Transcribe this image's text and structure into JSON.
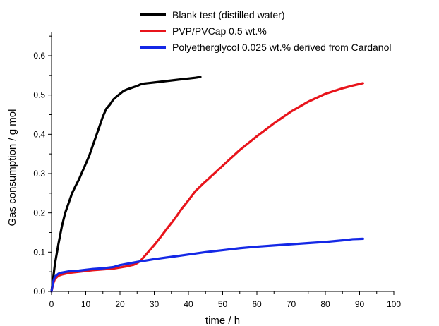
{
  "chart_data": {
    "type": "line",
    "title": "",
    "xlabel": "time / h",
    "ylabel": "Gas consumption / g mol",
    "xlim": [
      0,
      100
    ],
    "ylim": [
      0,
      0.65
    ],
    "x_ticks": [
      0,
      10,
      20,
      30,
      40,
      50,
      60,
      70,
      80,
      90,
      100
    ],
    "y_ticks": [
      0.0,
      0.1,
      0.2,
      0.3,
      0.4,
      0.5,
      0.6
    ],
    "x_tick_labels": [
      "0",
      "10",
      "20",
      "30",
      "40",
      "50",
      "60",
      "70",
      "80",
      "90",
      "100"
    ],
    "y_tick_labels": [
      "0.0",
      "0.1",
      "0.2",
      "0.3",
      "0.4",
      "0.5",
      "0.6"
    ],
    "grid": false,
    "legend_position": "top",
    "series": [
      {
        "name": "Blank test (distilled water)",
        "color": "#000000",
        "x": [
          0,
          0.5,
          1,
          2,
          3,
          4,
          5,
          6,
          7,
          8,
          9,
          10,
          11,
          12,
          13,
          14,
          15,
          16,
          17,
          18,
          19,
          20,
          21,
          22,
          23,
          24,
          25,
          26,
          27,
          28,
          29,
          30,
          32,
          34,
          36,
          38,
          40,
          42,
          43.5
        ],
        "y": [
          0.0,
          0.035,
          0.07,
          0.12,
          0.165,
          0.2,
          0.225,
          0.25,
          0.268,
          0.285,
          0.305,
          0.325,
          0.345,
          0.37,
          0.395,
          0.42,
          0.445,
          0.465,
          0.475,
          0.488,
          0.496,
          0.503,
          0.51,
          0.514,
          0.517,
          0.52,
          0.523,
          0.527,
          0.529,
          0.53,
          0.531,
          0.532,
          0.534,
          0.536,
          0.538,
          0.54,
          0.542,
          0.544,
          0.546
        ]
      },
      {
        "name": "PVP/PVCap 0.5 wt.%",
        "color": "#e8141b",
        "x": [
          0,
          0.5,
          1,
          2,
          3,
          5,
          8,
          10,
          12,
          15,
          18,
          20,
          22,
          24,
          25,
          26,
          27,
          28,
          30,
          32,
          34,
          36,
          38,
          40,
          42,
          44,
          46,
          50,
          55,
          60,
          65,
          70,
          75,
          80,
          85,
          88,
          91
        ],
        "y": [
          0.0,
          0.02,
          0.032,
          0.04,
          0.043,
          0.047,
          0.05,
          0.052,
          0.054,
          0.056,
          0.058,
          0.061,
          0.064,
          0.068,
          0.072,
          0.078,
          0.088,
          0.098,
          0.118,
          0.14,
          0.163,
          0.185,
          0.21,
          0.232,
          0.255,
          0.272,
          0.288,
          0.32,
          0.36,
          0.395,
          0.428,
          0.458,
          0.483,
          0.503,
          0.517,
          0.524,
          0.53
        ]
      },
      {
        "name": "Polyetherglycol 0.025 wt.% derived from Cardanol",
        "color": "#1428e6",
        "x": [
          0,
          0.5,
          1,
          2,
          3,
          5,
          8,
          10,
          12,
          15,
          18,
          20,
          25,
          30,
          35,
          40,
          45,
          50,
          55,
          60,
          65,
          70,
          75,
          80,
          85,
          88,
          91
        ],
        "y": [
          0.0,
          0.025,
          0.038,
          0.045,
          0.048,
          0.051,
          0.053,
          0.055,
          0.057,
          0.059,
          0.062,
          0.067,
          0.075,
          0.082,
          0.088,
          0.094,
          0.1,
          0.105,
          0.11,
          0.114,
          0.117,
          0.12,
          0.123,
          0.126,
          0.13,
          0.133,
          0.134
        ]
      }
    ]
  }
}
